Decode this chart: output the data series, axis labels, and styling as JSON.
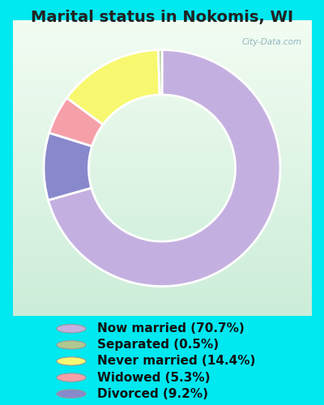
{
  "title": "Marital status in Nokomis, WI",
  "slices": [
    70.7,
    9.2,
    5.3,
    14.4,
    0.5
  ],
  "labels": [
    "Now married (70.7%)",
    "Separated (0.5%)",
    "Never married (14.4%)",
    "Widowed (5.3%)",
    "Divorced (9.2%)"
  ],
  "colors": [
    "#c4b0e0",
    "#8888cc",
    "#f5a0a8",
    "#f8f870",
    "#b0c890"
  ],
  "legend_colors": [
    "#c4b0e0",
    "#b0c890",
    "#f8f870",
    "#f5a0a8",
    "#8888cc"
  ],
  "bg_outer": "#00e8f0",
  "watermark": "City-Data.com",
  "title_fontsize": 14,
  "legend_fontsize": 11,
  "donut_width": 0.38
}
